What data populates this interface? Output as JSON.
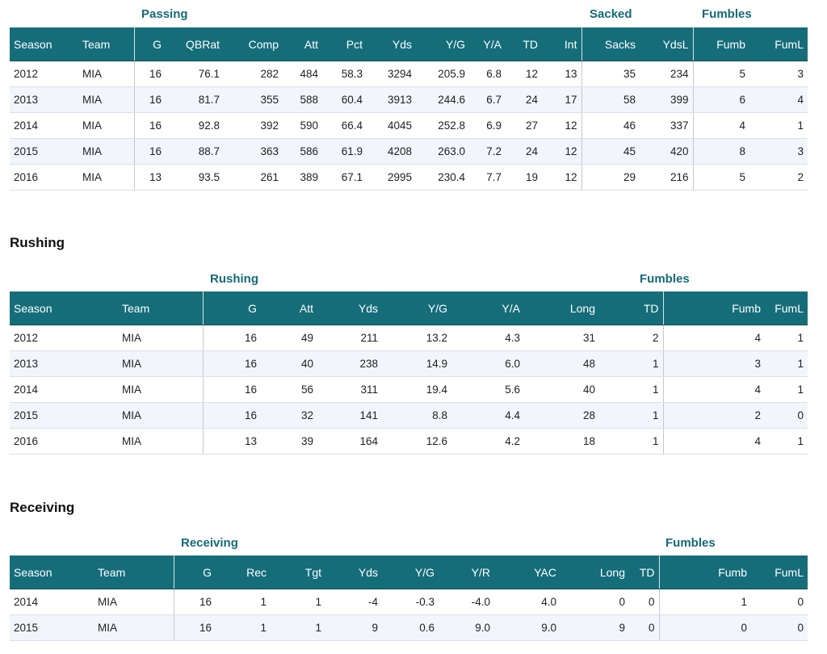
{
  "passing": {
    "groups": {
      "passing": "Passing",
      "sacked": "Sacked",
      "fumbles": "Fumbles"
    },
    "headers": [
      "Season",
      "Team",
      "G",
      "QBRat",
      "Comp",
      "Att",
      "Pct",
      "Yds",
      "Y/G",
      "Y/A",
      "TD",
      "Int",
      "Sacks",
      "YdsL",
      "Fumb",
      "FumL"
    ],
    "rows": [
      [
        "2012",
        "MIA",
        "16",
        "76.1",
        "282",
        "484",
        "58.3",
        "3294",
        "205.9",
        "6.8",
        "12",
        "13",
        "35",
        "234",
        "5",
        "3"
      ],
      [
        "2013",
        "MIA",
        "16",
        "81.7",
        "355",
        "588",
        "60.4",
        "3913",
        "244.6",
        "6.7",
        "24",
        "17",
        "58",
        "399",
        "6",
        "4"
      ],
      [
        "2014",
        "MIA",
        "16",
        "92.8",
        "392",
        "590",
        "66.4",
        "4045",
        "252.8",
        "6.9",
        "27",
        "12",
        "46",
        "337",
        "4",
        "1"
      ],
      [
        "2015",
        "MIA",
        "16",
        "88.7",
        "363",
        "586",
        "61.9",
        "4208",
        "263.0",
        "7.2",
        "24",
        "12",
        "45",
        "420",
        "8",
        "3"
      ],
      [
        "2016",
        "MIA",
        "13",
        "93.5",
        "261",
        "389",
        "67.1",
        "2995",
        "230.4",
        "7.7",
        "19",
        "12",
        "29",
        "216",
        "5",
        "2"
      ]
    ]
  },
  "rushing": {
    "title": "Rushing",
    "groups": {
      "rushing": "Rushing",
      "fumbles": "Fumbles"
    },
    "headers": [
      "Season",
      "Team",
      "G",
      "Att",
      "Yds",
      "Y/G",
      "Y/A",
      "Long",
      "TD",
      "Fumb",
      "FumL"
    ],
    "rows": [
      [
        "2012",
        "MIA",
        "16",
        "49",
        "211",
        "13.2",
        "4.3",
        "31",
        "2",
        "4",
        "1"
      ],
      [
        "2013",
        "MIA",
        "16",
        "40",
        "238",
        "14.9",
        "6.0",
        "48",
        "1",
        "3",
        "1"
      ],
      [
        "2014",
        "MIA",
        "16",
        "56",
        "311",
        "19.4",
        "5.6",
        "40",
        "1",
        "4",
        "1"
      ],
      [
        "2015",
        "MIA",
        "16",
        "32",
        "141",
        "8.8",
        "4.4",
        "28",
        "1",
        "2",
        "0"
      ],
      [
        "2016",
        "MIA",
        "13",
        "39",
        "164",
        "12.6",
        "4.2",
        "18",
        "1",
        "4",
        "1"
      ]
    ]
  },
  "receiving": {
    "title": "Receiving",
    "groups": {
      "receiving": "Receiving",
      "fumbles": "Fumbles"
    },
    "headers": [
      "Season",
      "Team",
      "G",
      "Rec",
      "Tgt",
      "Yds",
      "Y/G",
      "Y/R",
      "YAC",
      "Long",
      "TD",
      "Fumb",
      "FumL"
    ],
    "rows": [
      [
        "2014",
        "MIA",
        "16",
        "1",
        "1",
        "-4",
        "-0.3",
        "-4.0",
        "4.0",
        "0",
        "0",
        "1",
        "0"
      ],
      [
        "2015",
        "MIA",
        "16",
        "1",
        "1",
        "9",
        "0.6",
        "9.0",
        "9.0",
        "9",
        "0",
        "0",
        "0"
      ]
    ]
  }
}
